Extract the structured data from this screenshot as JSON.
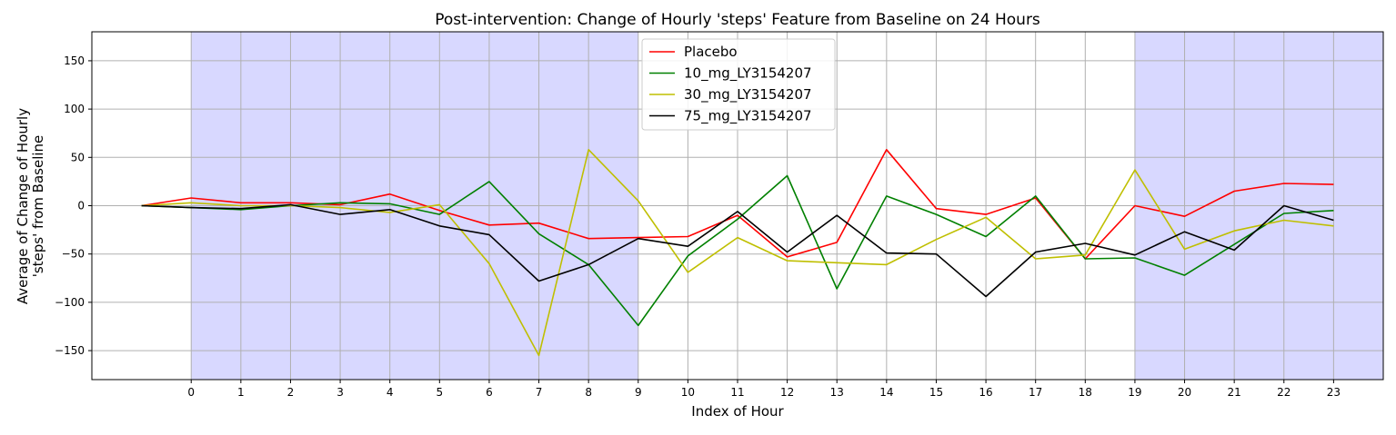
{
  "chart_data": {
    "type": "line",
    "title": "Post-intervention: Change of Hourly 'steps' Feature from Baseline on 24 Hours",
    "xlabel": "Index of Hour",
    "ylabel_lines": [
      "Average of Change of Hourly",
      "'steps' from Baseline"
    ],
    "x": [
      -1,
      0,
      1,
      2,
      3,
      4,
      5,
      6,
      7,
      8,
      9,
      10,
      11,
      12,
      13,
      14,
      15,
      16,
      17,
      18,
      19,
      20,
      21,
      22,
      23
    ],
    "x_ticks": [
      0,
      1,
      2,
      3,
      4,
      5,
      6,
      7,
      8,
      9,
      10,
      11,
      12,
      13,
      14,
      15,
      16,
      17,
      18,
      19,
      20,
      21,
      22,
      23
    ],
    "y_ticks": [
      -150,
      -100,
      -50,
      0,
      50,
      100,
      150
    ],
    "y_tick_labels": [
      "−150",
      "−100",
      "−50",
      "0",
      "50",
      "100",
      "150"
    ],
    "xlim": [
      -2,
      24
    ],
    "ylim": [
      -180,
      180
    ],
    "grid": true,
    "legend_position": "top-center",
    "shaded_regions": [
      {
        "from": 0,
        "to": 9,
        "color": "#d8d8ff"
      },
      {
        "from": 19,
        "to": 24,
        "color": "#d8d8ff"
      }
    ],
    "series": [
      {
        "name": "Placebo",
        "color": "#ff0000",
        "values": [
          0,
          8,
          3,
          3,
          1,
          12,
          -5,
          -20,
          -18,
          -34,
          -33,
          -32,
          -10,
          -53,
          -38,
          58,
          -3,
          -9,
          8,
          -55,
          0,
          -11,
          15,
          23,
          22
        ]
      },
      {
        "name": "10_mg_LY3154207",
        "color": "#008000",
        "values": [
          0,
          -2,
          -4,
          0,
          3,
          2,
          -9,
          25,
          -29,
          -61,
          -124,
          -52,
          -14,
          31,
          -86,
          10,
          -9,
          -32,
          10,
          -55,
          -54,
          -72,
          -40,
          -8,
          -5
        ]
      },
      {
        "name": "30_mg_LY3154207",
        "color": "#bfbf00",
        "values": [
          0,
          3,
          0,
          0,
          -2,
          -7,
          1,
          -60,
          -155,
          58,
          5,
          -69,
          -33,
          -57,
          -59,
          -61,
          -35,
          -12,
          -55,
          -51,
          37,
          -45,
          -26,
          -15,
          -21
        ]
      },
      {
        "name": "75_mg_LY3154207",
        "color": "#000000",
        "values": [
          0,
          -2,
          -3,
          1,
          -9,
          -4,
          -21,
          -30,
          -78,
          -61,
          -34,
          -42,
          -6,
          -48,
          -10,
          -49,
          -50,
          -94,
          -48,
          -39,
          -51,
          -27,
          -46,
          0,
          -15
        ]
      }
    ]
  }
}
